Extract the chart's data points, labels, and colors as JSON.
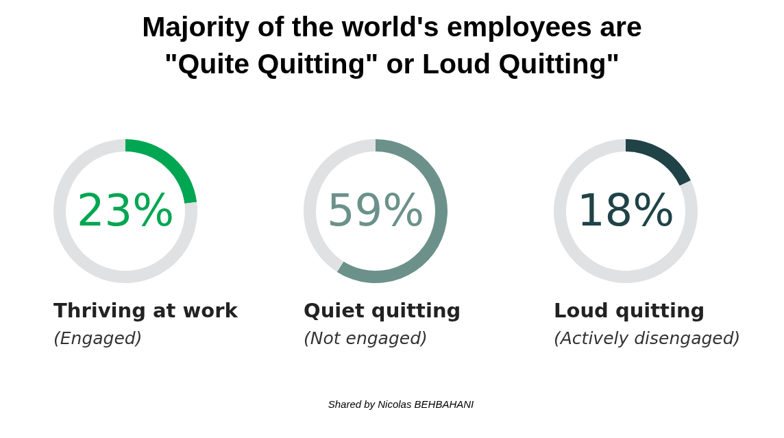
{
  "chart_data": [
    {
      "type": "donut",
      "title": "Majority of the world's employees are \"Quite Quitting\" or Loud Quitting\"",
      "xlabel": "Thriving at work",
      "categories": [
        null,
        null
      ],
      "values": [
        23,
        77
      ],
      "colors": [
        "#00a651",
        "#e0e1e3"
      ],
      "value_labels": [
        "23%",
        null
      ],
      "annotations": [
        "(Engaged)"
      ]
    },
    {
      "type": "donut",
      "xlabel": "Quiet quitting",
      "categories": [
        null,
        null
      ],
      "values": [
        59,
        41
      ],
      "colors": [
        "#6b918a",
        "#e0e1e3"
      ],
      "value_labels": [
        "59%",
        null
      ],
      "annotations": [
        "(Not engaged)",
        "Shared by Nicolas BEHBAHANI"
      ]
    },
    {
      "type": "donut",
      "xlabel": "Loud quitting",
      "categories": [
        null,
        null
      ],
      "values": [
        18,
        82
      ],
      "colors": [
        "#1f4347",
        "#e0e1e3"
      ],
      "value_labels": [
        "18%",
        null
      ],
      "annotations": [
        "(Actively disengaged)"
      ]
    }
  ]
}
